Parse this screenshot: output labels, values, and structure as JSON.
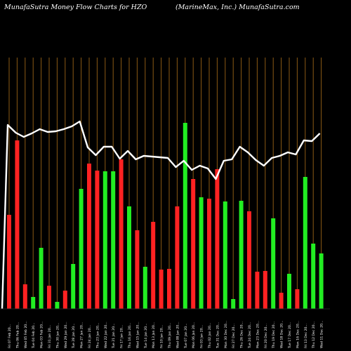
{
  "header": {
    "left": "MunafaSutra  Money Flow  Charts for HZO",
    "right": "(MarineMax,  Inc.) MunafaSutra.com"
  },
  "chart_data": {
    "type": "bar",
    "grid": true,
    "series": [
      {
        "name": "money flow",
        "values": [
          {
            "dir": "down",
            "h": 134
          },
          {
            "dir": "down",
            "h": 240
          },
          {
            "dir": "down",
            "h": 35
          },
          {
            "dir": "up",
            "h": 17
          },
          {
            "dir": "up",
            "h": 87
          },
          {
            "dir": "down",
            "h": 33
          },
          {
            "dir": "up",
            "h": 10
          },
          {
            "dir": "down",
            "h": 26
          },
          {
            "dir": "up",
            "h": 64
          },
          {
            "dir": "up",
            "h": 171
          },
          {
            "dir": "down",
            "h": 207
          },
          {
            "dir": "down",
            "h": 197
          },
          {
            "dir": "up",
            "h": 196
          },
          {
            "dir": "up",
            "h": 196
          },
          {
            "dir": "down",
            "h": 213
          },
          {
            "dir": "up",
            "h": 146
          },
          {
            "dir": "down",
            "h": 112
          },
          {
            "dir": "up",
            "h": 60
          },
          {
            "dir": "down",
            "h": 124
          },
          {
            "dir": "down",
            "h": 56
          },
          {
            "dir": "down",
            "h": 57
          },
          {
            "dir": "down",
            "h": 146
          },
          {
            "dir": "up",
            "h": 265
          },
          {
            "dir": "down",
            "h": 185
          },
          {
            "dir": "up",
            "h": 159
          },
          {
            "dir": "down",
            "h": 157
          },
          {
            "dir": "down",
            "h": 199
          },
          {
            "dir": "up",
            "h": 153
          },
          {
            "dir": "up",
            "h": 14
          },
          {
            "dir": "up",
            "h": 154
          },
          {
            "dir": "down",
            "h": 139
          },
          {
            "dir": "down",
            "h": 53
          },
          {
            "dir": "down",
            "h": 54
          },
          {
            "dir": "up",
            "h": 129
          },
          {
            "dir": "down",
            "h": 23
          },
          {
            "dir": "up",
            "h": 50
          },
          {
            "dir": "down",
            "h": 28
          },
          {
            "dir": "up",
            "h": 188
          },
          {
            "dir": "up",
            "h": 93
          },
          {
            "dir": "up",
            "h": 79
          }
        ]
      },
      {
        "name": "price",
        "values": [
          178,
          189,
          195,
          190,
          184,
          188,
          187,
          184,
          180,
          173,
          210,
          221,
          209,
          209,
          226,
          215,
          227,
          222,
          223,
          224,
          225,
          238,
          229,
          242,
          236,
          240,
          255,
          229,
          227,
          209,
          217,
          228,
          236,
          225,
          222,
          217,
          220,
          200,
          201,
          190
        ]
      }
    ],
    "categories": [
      "Fri 07 Feb 20…",
      "Thu 06 Feb 20…",
      "Wed 05 Feb 20…",
      "Tue 04 Feb 20…",
      "Mon 03 Feb 20…",
      "Fri 31 Jan 20…",
      "Thu 30 Jan 20…",
      "Wed 29 Jan 20…",
      "Tue 28 Jan 20…",
      "Mon 27 Jan 20…",
      "Fri 24 Jan 20…",
      "Thu 23 Jan 20…",
      "Wed 22 Jan 20…",
      "Tue 21 Jan 20…",
      "Fri 17 Jan 20…",
      "Thu 16 Jan 20…",
      "Wed 15 Jan 20…",
      "Tue 14 Jan 20…",
      "Mon 13 Jan 20…",
      "Fri 10 Jan 20…",
      "Thu 09 Jan 20…",
      "Wed 08 Jan 20…",
      "Tue 07 Jan 20…",
      "Mon 06 Jan 20…",
      "Fri 03 Jan 20…",
      "Thu 02 Jan 20…",
      "Tue 31 Dec 20…",
      "Mon 30 Dec 20…",
      "Fri 27 Dec 20…",
      "Thu 26 Dec 20…",
      "Tue 24 Dec 20…",
      "Mon 23 Dec 20…",
      "Fri 20 Dec 20…",
      "Thu 19 Dec 20…",
      "Wed 18 Dec 20…",
      "Tue 17 Dec 20…",
      "Mon 16 Dec 20…",
      "Fri 13 Dec 20…",
      "Thu 12 Dec 20…",
      "Wed 11 Dec 20…"
    ],
    "colors": {
      "up": "#22ee22",
      "down": "#ff2222",
      "line": "#ffffff",
      "grid": "#8b5a14",
      "bg": "#000000",
      "text": "#ffffff"
    }
  }
}
